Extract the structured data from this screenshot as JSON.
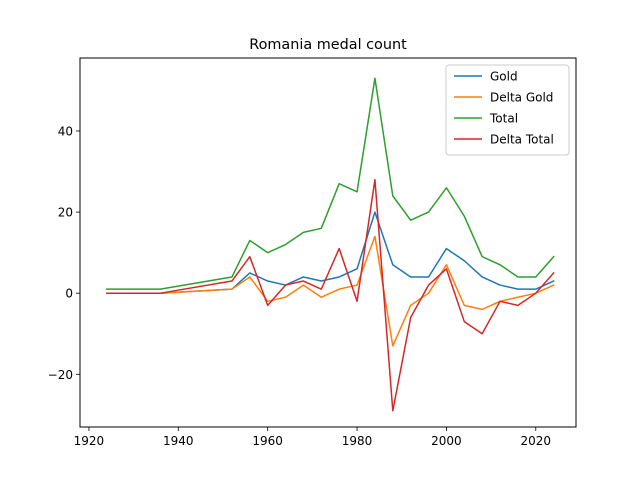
{
  "chart_data": {
    "type": "line",
    "title": "Romania medal count",
    "xlabel": "",
    "ylabel": "",
    "xlim": [
      1918,
      2029
    ],
    "ylim": [
      -33,
      58
    ],
    "xticks": [
      1920,
      1940,
      1960,
      1980,
      2000,
      2020
    ],
    "yticks": [
      -20,
      0,
      20,
      40
    ],
    "ytick_labels": [
      "−20",
      "0",
      "20",
      "40"
    ],
    "grid": false,
    "legend_position": "top-right",
    "x": [
      1924,
      1936,
      1952,
      1956,
      1960,
      1964,
      1968,
      1972,
      1976,
      1980,
      1984,
      1988,
      1992,
      1996,
      2000,
      2004,
      2008,
      2012,
      2016,
      2020,
      2024
    ],
    "series": [
      {
        "name": "Gold",
        "color": "#1f77b4",
        "values": [
          0,
          0,
          1,
          5,
          3,
          2,
          4,
          3,
          4,
          6,
          20,
          7,
          4,
          4,
          11,
          8,
          4,
          2,
          1,
          1,
          3
        ]
      },
      {
        "name": "Delta Gold",
        "color": "#ff7f0e",
        "values": [
          0,
          0,
          1,
          4,
          -2,
          -1,
          2,
          -1,
          1,
          2,
          14,
          -13,
          -3,
          0,
          7,
          -3,
          -4,
          -2,
          -1,
          0,
          2
        ]
      },
      {
        "name": "Total",
        "color": "#2ca02c",
        "values": [
          1,
          1,
          4,
          13,
          10,
          12,
          15,
          16,
          27,
          25,
          53,
          24,
          18,
          20,
          26,
          19,
          9,
          7,
          4,
          4,
          9
        ]
      },
      {
        "name": "Delta Total",
        "color": "#d62728",
        "values": [
          0,
          0,
          3,
          9,
          -3,
          2,
          3,
          1,
          11,
          -2,
          28,
          -29,
          -6,
          2,
          6,
          -7,
          -10,
          -2,
          -3,
          0,
          5
        ]
      }
    ]
  }
}
